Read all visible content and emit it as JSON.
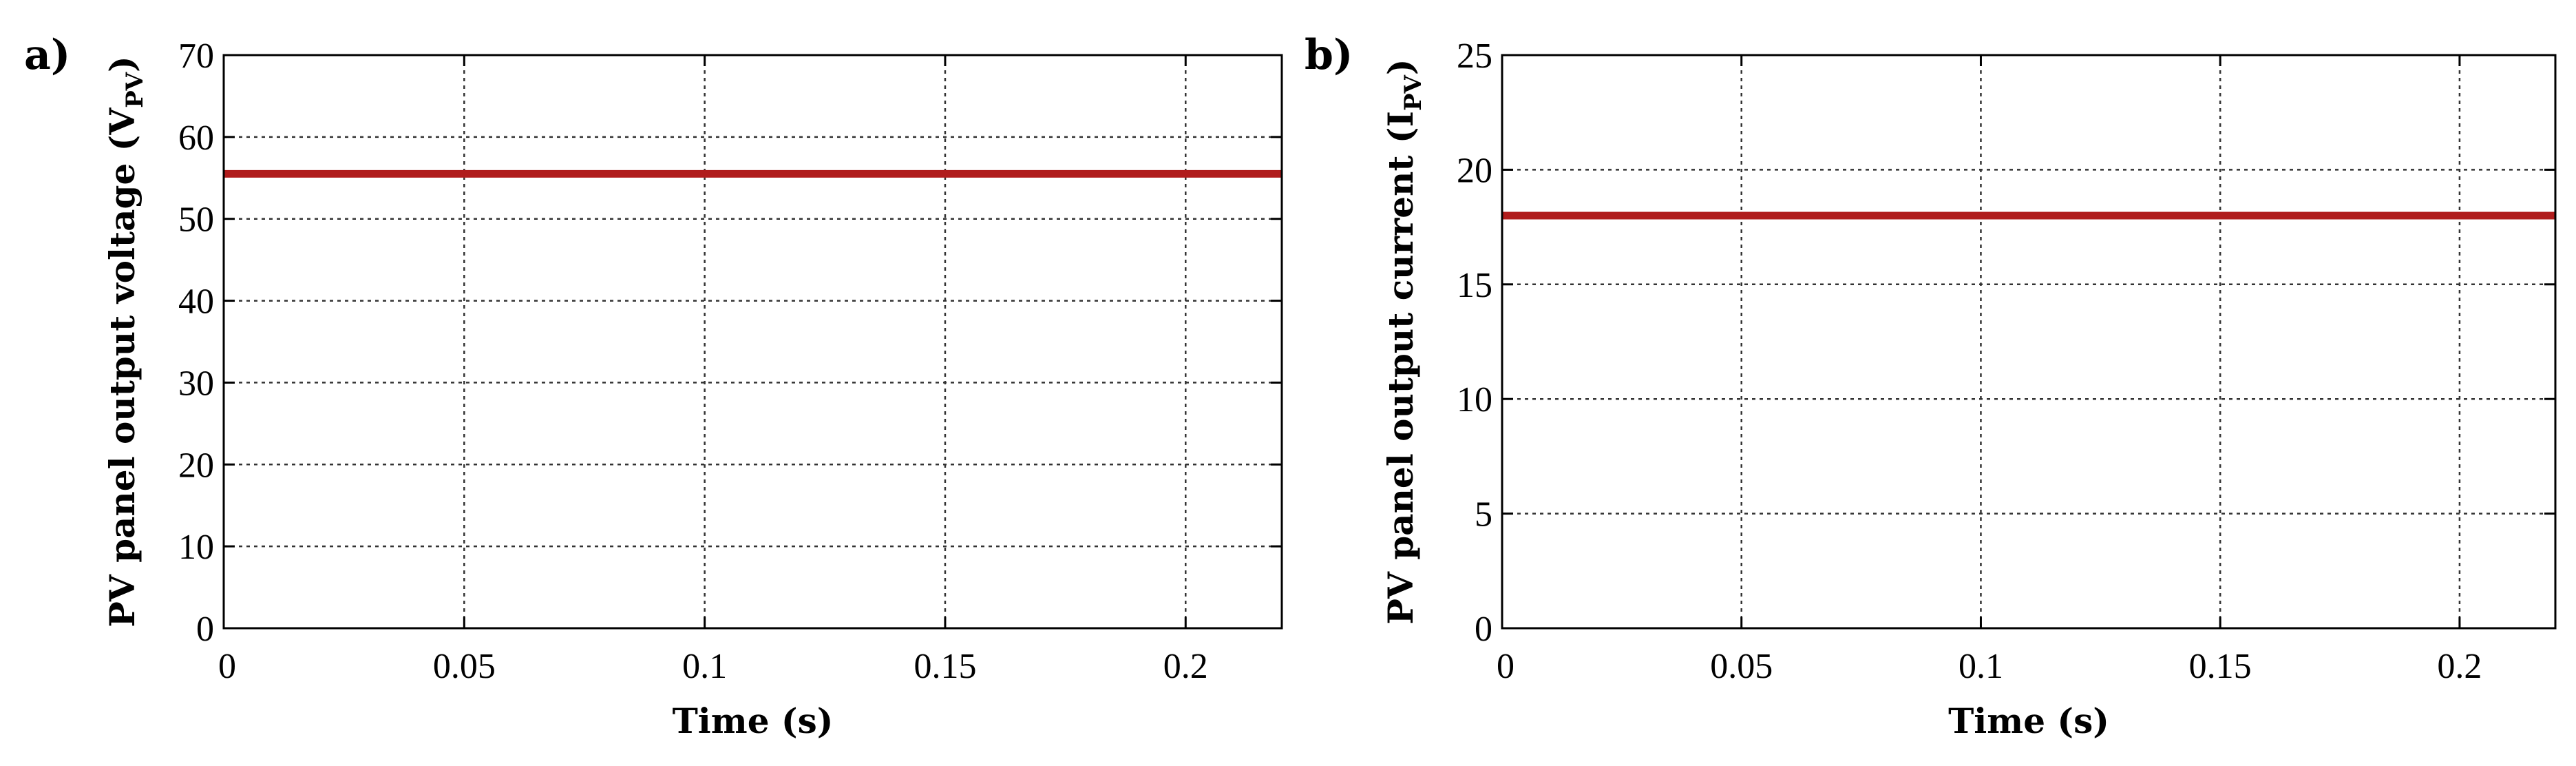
{
  "chart_data": [
    {
      "panel": "a)",
      "type": "line",
      "xlabel": "Time (s)",
      "ylabel": {
        "text": "PV panel output voltage (V",
        "sub": "PV",
        "end": ")"
      },
      "xlim": [
        0,
        0.22
      ],
      "ylim": [
        0,
        70
      ],
      "xticks": [
        0,
        0.05,
        0.1,
        0.15,
        0.2
      ],
      "xtick_labels": [
        "0",
        "0.05",
        "0.1",
        "0.15",
        "0.2"
      ],
      "yticks": [
        0,
        10,
        20,
        30,
        40,
        50,
        60,
        70
      ],
      "ytick_labels": [
        "0",
        "10",
        "20",
        "30",
        "40",
        "50",
        "60",
        "70"
      ],
      "grid": true,
      "series": [
        {
          "x": [
            0,
            0.22
          ],
          "y": [
            55.5,
            55.5
          ],
          "color": "#b01c1c"
        }
      ]
    },
    {
      "panel": "b)",
      "type": "line",
      "xlabel": "Time (s)",
      "ylabel": {
        "text": "PV panel output current (I",
        "sub": "PV",
        "end": ")"
      },
      "xlim": [
        0,
        0.22
      ],
      "ylim": [
        0,
        25
      ],
      "xticks": [
        0,
        0.05,
        0.1,
        0.15,
        0.2
      ],
      "xtick_labels": [
        "0",
        "0.05",
        "0.1",
        "0.15",
        "0.2"
      ],
      "yticks": [
        0,
        5,
        10,
        15,
        20,
        25
      ],
      "ytick_labels": [
        "0",
        "5",
        "10",
        "15",
        "20",
        "25"
      ],
      "grid": true,
      "series": [
        {
          "x": [
            0,
            0.22
          ],
          "y": [
            18,
            18
          ],
          "color": "#b01c1c"
        }
      ]
    }
  ]
}
